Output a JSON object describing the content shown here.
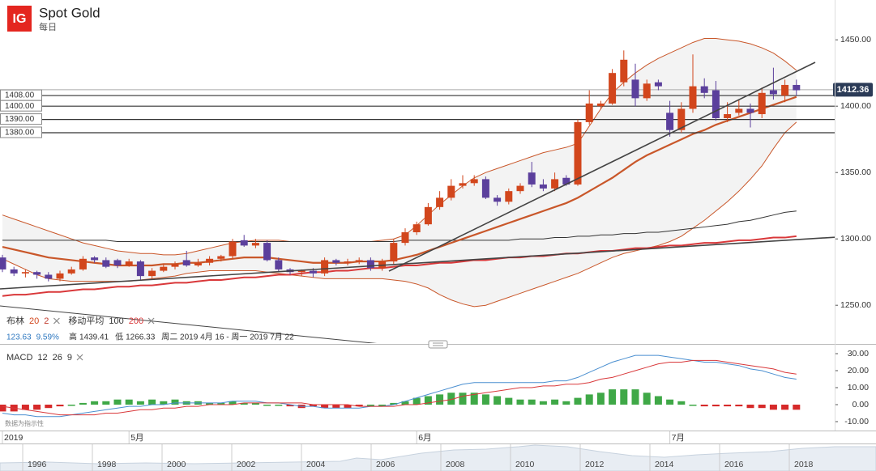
{
  "header": {
    "logo": "IG",
    "title": "Spot Gold",
    "interval": "每日"
  },
  "chart_data": [
    {
      "type": "candlestick",
      "categories": [
        "2019",
        null,
        null,
        null,
        null,
        null,
        null,
        null,
        null,
        null,
        null,
        "5月",
        null,
        null,
        null,
        null,
        null,
        null,
        null,
        null,
        null,
        null,
        null,
        null,
        null,
        null,
        null,
        null,
        null,
        null,
        null,
        null,
        null,
        null,
        null,
        null,
        "6月",
        null,
        null,
        null,
        null,
        null,
        null,
        null,
        null,
        null,
        null,
        null,
        null,
        null,
        null,
        null,
        null,
        null,
        null,
        null,
        null,
        null,
        "7月",
        null,
        null,
        null,
        null,
        null,
        null,
        null,
        null,
        null,
        null,
        null
      ],
      "open": [
        1286,
        1277,
        1274,
        1275,
        1273,
        1270,
        1274,
        1277,
        1286,
        1284,
        1284,
        1280,
        1283,
        1272,
        1276,
        1279,
        1284,
        1280,
        1282,
        1285,
        1287,
        1299,
        1295,
        1297,
        1284,
        1277,
        1275,
        1276,
        1274,
        1284,
        1282,
        1283,
        1284,
        1278,
        1283,
        1297,
        1305,
        1311,
        1324,
        1331,
        1340,
        1342,
        1345,
        1331,
        1328,
        1336,
        1350,
        1341,
        1338,
        1346,
        1341,
        1388,
        1400,
        1402,
        1418,
        1420,
        1406,
        1418,
        1395,
        1382,
        1398,
        1415,
        1412,
        1391,
        1395,
        1398,
        1394,
        1412,
        1408,
        1416
      ],
      "high": [
        1288,
        1279,
        1277,
        1276,
        1275,
        1276,
        1279,
        1287,
        1287,
        1286,
        1285,
        1285,
        1284,
        1278,
        1281,
        1283,
        1291,
        1285,
        1287,
        1288,
        1300,
        1303,
        1300,
        1299,
        1286,
        1278,
        1277,
        1278,
        1286,
        1285,
        1285,
        1286,
        1286,
        1285,
        1300,
        1308,
        1313,
        1327,
        1336,
        1345,
        1348,
        1348,
        1347,
        1333,
        1338,
        1342,
        1358,
        1345,
        1350,
        1348,
        1390,
        1412,
        1404,
        1428,
        1442,
        1432,
        1420,
        1420,
        1404,
        1403,
        1439,
        1421,
        1419,
        1403,
        1405,
        1402,
        1414,
        1429,
        1420,
        1420
      ],
      "low": [
        1275,
        1272,
        1271,
        1270,
        1268,
        1268,
        1273,
        1276,
        1282,
        1278,
        1278,
        1279,
        1269,
        1270,
        1275,
        1277,
        1279,
        1279,
        1280,
        1283,
        1285,
        1294,
        1293,
        1283,
        1275,
        1273,
        1272,
        1271,
        1272,
        1280,
        1280,
        1281,
        1276,
        1276,
        1281,
        1295,
        1303,
        1310,
        1322,
        1329,
        1338,
        1340,
        1330,
        1325,
        1326,
        1334,
        1339,
        1336,
        1336,
        1340,
        1340,
        1386,
        1398,
        1401,
        1415,
        1400,
        1404,
        1412,
        1377,
        1380,
        1395,
        1406,
        1389,
        1388,
        1393,
        1384,
        1391,
        1405,
        1403,
        1408
      ],
      "close": [
        1277,
        1274,
        1275,
        1273,
        1270,
        1274,
        1277,
        1285,
        1284,
        1279,
        1280,
        1283,
        1272,
        1276,
        1279,
        1281,
        1280,
        1282,
        1285,
        1287,
        1298,
        1295,
        1297,
        1284,
        1277,
        1275,
        1276,
        1274,
        1284,
        1282,
        1283,
        1284,
        1278,
        1283,
        1297,
        1305,
        1311,
        1324,
        1331,
        1340,
        1342,
        1345,
        1331,
        1328,
        1336,
        1340,
        1341,
        1338,
        1345,
        1341,
        1388,
        1402,
        1402,
        1425,
        1435,
        1406,
        1417,
        1415,
        1382,
        1398,
        1415,
        1410,
        1391,
        1394,
        1398,
        1395,
        1410,
        1409,
        1416,
        1412
      ],
      "up_color": "#d2461c",
      "down_color": "#5b3f9c",
      "bollinger": {
        "color": "#c9572a",
        "fill": "#f3f3f3",
        "upper": [
          1318,
          1315,
          1312,
          1309,
          1306,
          1303,
          1300,
          1297,
          1295,
          1293,
          1291,
          1290,
          1289,
          1289,
          1288,
          1288,
          1289,
          1291,
          1293,
          1295,
          1297,
          1298,
          1299,
          1299,
          1299,
          1298,
          1298,
          1298,
          1298,
          1298,
          1298,
          1298,
          1298,
          1299,
          1300,
          1303,
          1310,
          1318,
          1326,
          1333,
          1340,
          1346,
          1350,
          1353,
          1356,
          1359,
          1362,
          1365,
          1367,
          1369,
          1372,
          1385,
          1398,
          1410,
          1418,
          1425,
          1431,
          1436,
          1440,
          1444,
          1448,
          1451,
          1451,
          1450,
          1449,
          1447,
          1444,
          1440,
          1434,
          1427
        ],
        "middle": [
          1294,
          1292,
          1290,
          1288,
          1286,
          1285,
          1284,
          1283,
          1282,
          1281,
          1280,
          1280,
          1280,
          1280,
          1281,
          1281,
          1282,
          1282,
          1283,
          1284,
          1285,
          1286,
          1286,
          1286,
          1285,
          1284,
          1283,
          1282,
          1282,
          1282,
          1282,
          1283,
          1283,
          1283,
          1284,
          1286,
          1288,
          1291,
          1294,
          1297,
          1300,
          1303,
          1306,
          1309,
          1312,
          1315,
          1318,
          1321,
          1324,
          1327,
          1331,
          1336,
          1341,
          1346,
          1352,
          1358,
          1363,
          1367,
          1371,
          1375,
          1379,
          1382,
          1386,
          1389,
          1392,
          1395,
          1398,
          1401,
          1404,
          1407
        ],
        "lower": [
          1285,
          1281,
          1277,
          1273,
          1270,
          1269,
          1268,
          1268,
          1268,
          1268,
          1268,
          1268,
          1269,
          1270,
          1271,
          1272,
          1274,
          1275,
          1276,
          1276,
          1276,
          1276,
          1276,
          1275,
          1274,
          1273,
          1272,
          1271,
          1270,
          1270,
          1270,
          1270,
          1270,
          1270,
          1269,
          1268,
          1266,
          1263,
          1258,
          1254,
          1251,
          1249,
          1250,
          1253,
          1256,
          1259,
          1262,
          1265,
          1268,
          1271,
          1274,
          1278,
          1282,
          1286,
          1289,
          1291,
          1293,
          1295,
          1298,
          1302,
          1308,
          1314,
          1321,
          1328,
          1336,
          1345,
          1355,
          1368,
          1380,
          1388
        ]
      },
      "moving_averages": [
        {
          "color": "#333333",
          "values": [
            1299,
            1299,
            1299,
            1299,
            1299,
            1299,
            1299,
            1299,
            1299,
            1299,
            1298,
            1298,
            1298,
            1298,
            1298,
            1298,
            1298,
            1298,
            1298,
            1298,
            1298,
            1298,
            1298,
            1298,
            1298,
            1298,
            1298,
            1298,
            1298,
            1298,
            1298,
            1298,
            1298,
            1298,
            1298,
            1299,
            1299,
            1299,
            1299,
            1299,
            1299,
            1299,
            1299,
            1299,
            1299,
            1300,
            1300,
            1300,
            1301,
            1301,
            1302,
            1302,
            1303,
            1303,
            1304,
            1304,
            1305,
            1305,
            1306,
            1307,
            1308,
            1309,
            1310,
            1311,
            1313,
            1314,
            1316,
            1318,
            1320,
            1321
          ]
        },
        {
          "color": "#d9383a",
          "values": [
            1257,
            1258,
            1258,
            1259,
            1260,
            1260,
            1261,
            1262,
            1262,
            1263,
            1264,
            1264,
            1265,
            1265,
            1266,
            1267,
            1267,
            1268,
            1269,
            1269,
            1270,
            1271,
            1271,
            1272,
            1273,
            1273,
            1274,
            1275,
            1275,
            1276,
            1276,
            1277,
            1278,
            1278,
            1279,
            1280,
            1280,
            1281,
            1282,
            1282,
            1283,
            1284,
            1284,
            1285,
            1286,
            1286,
            1287,
            1287,
            1288,
            1289,
            1289,
            1290,
            1291,
            1291,
            1292,
            1293,
            1293,
            1294,
            1295,
            1295,
            1296,
            1297,
            1297,
            1298,
            1299,
            1299,
            1300,
            1301,
            1301,
            1302
          ]
        }
      ],
      "levels": [
        {
          "value": 1408,
          "label": "1408.00"
        },
        {
          "value": 1400,
          "label": "1400.00"
        },
        {
          "value": 1390,
          "label": "1390.00"
        },
        {
          "value": 1380,
          "label": "1380.00"
        }
      ],
      "last_price": 1412.36,
      "ylim": [
        1220,
        1480
      ],
      "yticks": [
        {
          "value": 1450,
          "label": "1450.00"
        },
        {
          "value": 1400,
          "label": "1400.00"
        },
        {
          "value": 1350,
          "label": "1350.00"
        },
        {
          "value": 1300,
          "label": "1300.00"
        },
        {
          "value": 1250,
          "label": "1250.00"
        }
      ],
      "grid": false,
      "indicators": [
        {
          "name": "布林",
          "params": [
            20,
            2
          ],
          "param_colors": [
            "#d2461c",
            "#c0392b"
          ]
        },
        {
          "name": "移动平均",
          "params": [
            100,
            200
          ],
          "param_colors": [
            "#333333",
            "#d9383a"
          ]
        }
      ],
      "stats": {
        "change": "123.63",
        "change_pct": "9.59%",
        "high_label": "高",
        "high": 1439.41,
        "low_label": "低",
        "low": 1266.33,
        "range": "周二 2019 4月 16 - 周一 2019 7月 22"
      }
    },
    {
      "type": "macd",
      "title": "MACD",
      "params": [
        12,
        26,
        9
      ],
      "macd": {
        "color": "#4a8fd0",
        "values": [
          -5,
          -6,
          -6,
          -7,
          -7,
          -7,
          -6,
          -5,
          -4,
          -3,
          -2,
          -1,
          -1,
          0,
          0,
          1,
          1,
          1,
          1,
          1,
          2,
          2,
          2,
          1,
          1,
          0,
          -1,
          -1,
          -2,
          -2,
          -2,
          -2,
          -1,
          -1,
          0,
          2,
          4,
          6,
          8,
          10,
          12,
          13,
          13,
          13,
          13,
          13,
          13,
          13,
          14,
          14,
          16,
          19,
          22,
          25,
          27,
          29,
          29,
          29,
          28,
          27,
          26,
          25,
          25,
          24,
          23,
          21,
          20,
          18,
          16,
          15
        ]
      },
      "signal": {
        "color": "#d9383a",
        "values": [
          -1,
          -2,
          -3,
          -4,
          -5,
          -6,
          -6,
          -6,
          -6,
          -5,
          -5,
          -4,
          -3,
          -3,
          -2,
          -2,
          -1,
          -1,
          0,
          0,
          0,
          1,
          1,
          1,
          1,
          1,
          1,
          0,
          0,
          0,
          0,
          -1,
          -1,
          -1,
          -1,
          0,
          0,
          1,
          2,
          3,
          5,
          6,
          7,
          8,
          9,
          10,
          10,
          11,
          11,
          12,
          12,
          13,
          15,
          16,
          18,
          20,
          22,
          24,
          25,
          25,
          26,
          26,
          26,
          25,
          24,
          23,
          22,
          21,
          19,
          18
        ]
      },
      "histogram": {
        "pos_color": "#3fa847",
        "neg_color": "#d62a2a",
        "values": [
          -4,
          -4,
          -3,
          -3,
          -2,
          -1,
          0,
          1,
          2,
          2,
          3,
          3,
          2,
          3,
          2,
          3,
          2,
          2,
          1,
          1,
          2,
          1,
          1,
          0,
          0,
          -1,
          -2,
          -1,
          -2,
          -2,
          -2,
          -1,
          0,
          0,
          1,
          2,
          4,
          5,
          6,
          7,
          7,
          7,
          6,
          5,
          4,
          3,
          3,
          2,
          3,
          2,
          4,
          6,
          7,
          9,
          9,
          9,
          7,
          5,
          3,
          2,
          0,
          -1,
          -1,
          -1,
          -1,
          -2,
          -2,
          -3,
          -3,
          -3
        ]
      },
      "ylim": [
        -15,
        33
      ],
      "yticks": [
        {
          "value": 30,
          "label": "30.00"
        },
        {
          "value": 20,
          "label": "20.00"
        },
        {
          "value": 10,
          "label": "10.00"
        },
        {
          "value": 0,
          "label": "0.00"
        },
        {
          "value": -10,
          "label": "-10.00"
        }
      ],
      "note": "数据为指示性"
    }
  ],
  "navigator": {
    "years": [
      1996,
      1998,
      2000,
      2002,
      2004,
      2006,
      2008,
      2010,
      2012,
      2014,
      2016,
      2018
    ]
  }
}
